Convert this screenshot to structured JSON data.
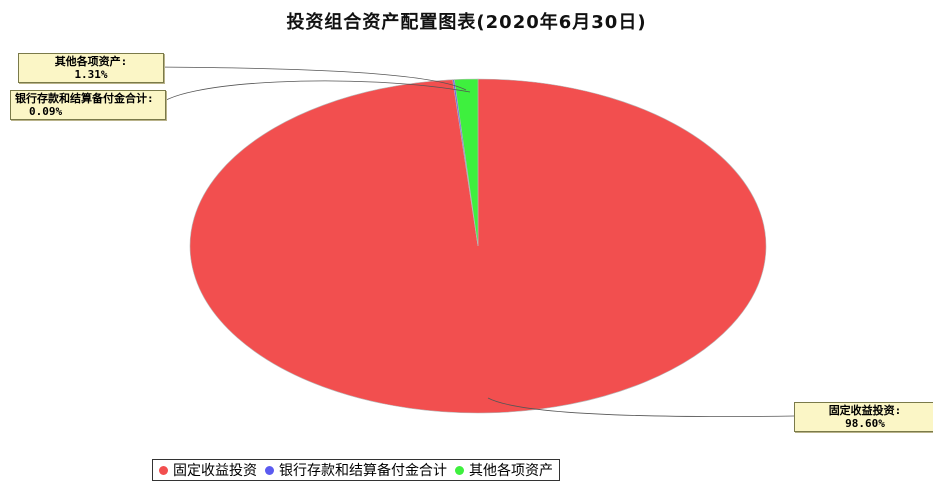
{
  "chart_data": {
    "type": "pie",
    "title": "投资组合资产配置图表(2020年6月30日)",
    "slices": [
      {
        "label": "固定收益投资",
        "value": 98.6,
        "value_label": "98.60%",
        "color": "#f24f4f",
        "callout_label": "固定收益投资:"
      },
      {
        "label": "银行存款和结算备付金合计",
        "value": 0.09,
        "value_label": "0.09%",
        "color": "#5b5bf0",
        "callout_label": "银行存款和结算备付金合计:"
      },
      {
        "label": "其他各项资产",
        "value": 1.31,
        "value_label": "1.31%",
        "color": "#3ef03e",
        "callout_label": "其他各项资产:"
      }
    ],
    "legend_placement": "bottom"
  }
}
